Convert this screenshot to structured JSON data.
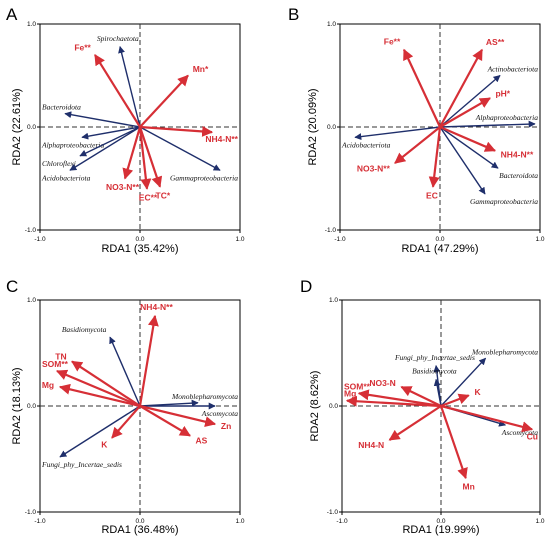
{
  "panels": [
    {
      "label": "A",
      "xlabel": "RDA1 (35.42%)",
      "ylabel": "RDA2 (22.61%)",
      "chart_data": {
        "type": "scatter",
        "xlim": [
          -1.0,
          1.0
        ],
        "ylim": [
          -1.0,
          1.0
        ],
        "xticks": [
          "-1.0",
          "0.0",
          "1.0"
        ],
        "yticks": [
          "-1.0",
          "0.0",
          "1.0"
        ],
        "env_vectors": [
          {
            "name": "Fe**",
            "x": -0.45,
            "y": 0.7
          },
          {
            "name": "Mn*",
            "x": 0.48,
            "y": 0.5
          },
          {
            "name": "NH4-N**",
            "x": 0.72,
            "y": -0.05
          },
          {
            "name": "TC*",
            "x": 0.2,
            "y": -0.58
          },
          {
            "name": "EC**",
            "x": 0.07,
            "y": -0.6
          },
          {
            "name": "NO3-N**",
            "x": -0.15,
            "y": -0.5
          }
        ],
        "taxa_vectors": [
          {
            "name": "Spirochaetota",
            "x": -0.2,
            "y": 0.78
          },
          {
            "name": "Bacteroidota",
            "x": -0.75,
            "y": 0.13
          },
          {
            "name": "Alphaproteobacteria",
            "x": -0.58,
            "y": -0.1
          },
          {
            "name": "Chloroflexi",
            "x": -0.6,
            "y": -0.28
          },
          {
            "name": "Acidobacteriota",
            "x": -0.7,
            "y": -0.42
          },
          {
            "name": "Gammaproteobacteria",
            "x": 0.8,
            "y": -0.42
          }
        ]
      }
    },
    {
      "label": "B",
      "xlabel": "RDA1 (47.29%)",
      "ylabel": "RDA2 (20.09%)",
      "chart_data": {
        "type": "scatter",
        "xlim": [
          -1.0,
          1.0
        ],
        "ylim": [
          -1.0,
          1.0
        ],
        "xticks": [
          "-1.0",
          "0.0",
          "1.0"
        ],
        "yticks": [
          "-1.0",
          "0.0",
          "1.0"
        ],
        "env_vectors": [
          {
            "name": "Fe**",
            "x": -0.36,
            "y": 0.75
          },
          {
            "name": "AS**",
            "x": 0.42,
            "y": 0.75
          },
          {
            "name": "pH*",
            "x": 0.5,
            "y": 0.28
          },
          {
            "name": "NH4-N**",
            "x": 0.55,
            "y": -0.23
          },
          {
            "name": "NO3-N**",
            "x": -0.45,
            "y": -0.35
          },
          {
            "name": "EC",
            "x": -0.07,
            "y": -0.58
          }
        ],
        "taxa_vectors": [
          {
            "name": "Actinobacteriota",
            "x": 0.6,
            "y": 0.5
          },
          {
            "name": "Alphaproteobacteria",
            "x": 0.95,
            "y": 0.03
          },
          {
            "name": "Acidobacteriota",
            "x": -0.85,
            "y": -0.1
          },
          {
            "name": "Bacteroidota",
            "x": 0.58,
            "y": -0.4
          },
          {
            "name": "Gammaproteobacteria",
            "x": 0.45,
            "y": -0.65
          }
        ]
      }
    },
    {
      "label": "C",
      "xlabel": "RDA1 (36.48%)",
      "ylabel": "RDA2 (18.13%)",
      "chart_data": {
        "type": "scatter",
        "xlim": [
          -1.0,
          1.0
        ],
        "ylim": [
          -1.0,
          1.0
        ],
        "xticks": [
          "-1.0",
          "0.0",
          "1.0"
        ],
        "yticks": [
          "-1.0",
          "0.0",
          "1.0"
        ],
        "env_vectors": [
          {
            "name": "NH4-N**",
            "x": 0.15,
            "y": 0.85
          },
          {
            "name": "TN",
            "x": -0.68,
            "y": 0.42
          },
          {
            "name": "SOM**",
            "x": -0.83,
            "y": 0.33
          },
          {
            "name": "Mg",
            "x": -0.8,
            "y": 0.18
          },
          {
            "name": "K",
            "x": -0.28,
            "y": -0.3
          },
          {
            "name": "AS",
            "x": 0.5,
            "y": -0.28
          },
          {
            "name": "Zn",
            "x": 0.75,
            "y": -0.17
          }
        ],
        "taxa_vectors": [
          {
            "name": "Basidiomycota",
            "x": -0.3,
            "y": 0.65
          },
          {
            "name": "Monoblepharomycota",
            "x": 0.58,
            "y": 0.03
          },
          {
            "name": "Ascomycota",
            "x": 0.75,
            "y": 0.0
          },
          {
            "name": "Fungi_phy_Incertae_sedis",
            "x": -0.8,
            "y": -0.48
          }
        ]
      }
    },
    {
      "label": "D",
      "xlabel": "RDA1 (19.99%)",
      "ylabel": "RDA2 (8.62%)",
      "chart_data": {
        "type": "scatter",
        "xlim": [
          -1.0,
          1.0
        ],
        "ylim": [
          -1.0,
          1.0
        ],
        "xticks": [
          "-1.0",
          "0.0",
          "1.0"
        ],
        "yticks": [
          "-1.0",
          "0.0",
          "1.0"
        ],
        "env_vectors": [
          {
            "name": "SOM**",
            "x": -0.83,
            "y": 0.12
          },
          {
            "name": "Mg",
            "x": -0.95,
            "y": 0.05
          },
          {
            "name": "NO3-N",
            "x": -0.4,
            "y": 0.18
          },
          {
            "name": "K",
            "x": 0.28,
            "y": 0.1
          },
          {
            "name": "Cu",
            "x": 0.92,
            "y": -0.22
          },
          {
            "name": "NH4-N",
            "x": -0.52,
            "y": -0.32
          },
          {
            "name": "Mn",
            "x": 0.25,
            "y": -0.68
          }
        ],
        "taxa_vectors": [
          {
            "name": "Monoblepharomycota",
            "x": 0.45,
            "y": 0.45
          },
          {
            "name": "Fungi_phy_Incertae_sedis",
            "x": -0.05,
            "y": 0.38
          },
          {
            "name": "Basidiomycota",
            "x": -0.05,
            "y": 0.25
          },
          {
            "name": "Ascomycota",
            "x": 0.65,
            "y": -0.18
          }
        ]
      }
    }
  ]
}
